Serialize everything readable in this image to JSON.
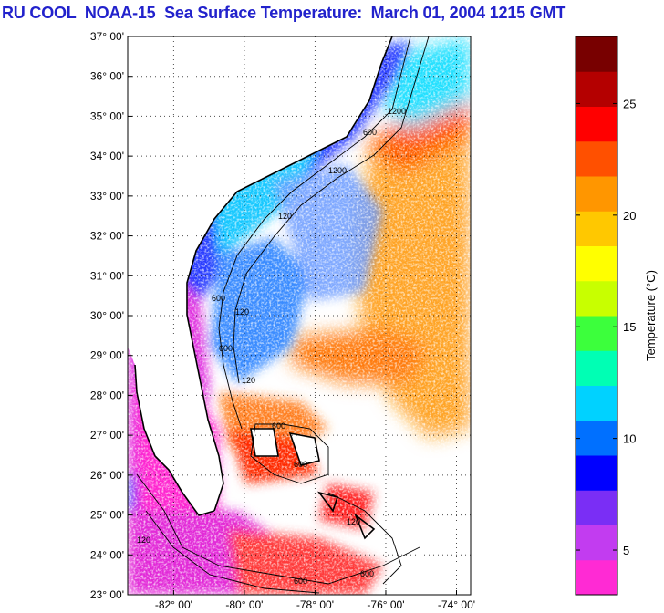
{
  "title": "RU COOL  NOAA-15  Sea Surface Temperature:  March 01, 2004 1215 GMT",
  "map": {
    "lat_range": [
      23,
      37
    ],
    "lon_range": [
      -83.3,
      -73.6
    ],
    "lat_labels": [
      {
        "value": 37,
        "label": "37° 00'"
      },
      {
        "value": 36,
        "label": "36° 00'"
      },
      {
        "value": 35,
        "label": "35° 00'"
      },
      {
        "value": 34,
        "label": "34° 00'"
      },
      {
        "value": 33,
        "label": "33° 00'"
      },
      {
        "value": 32,
        "label": "32° 00'"
      },
      {
        "value": 31,
        "label": "31° 00'"
      },
      {
        "value": 30,
        "label": "30° 00'"
      },
      {
        "value": 29,
        "label": "29° 00'"
      },
      {
        "value": 28,
        "label": "28° 00'"
      },
      {
        "value": 27,
        "label": "27° 00'"
      },
      {
        "value": 26,
        "label": "26° 00'"
      },
      {
        "value": 25,
        "label": "25° 00'"
      },
      {
        "value": 24,
        "label": "24° 00'"
      },
      {
        "value": 23,
        "label": "23° 00'"
      }
    ],
    "lon_labels": [
      {
        "value": -82,
        "label": "-82° 00'"
      },
      {
        "value": -80,
        "label": "-80° 00'"
      },
      {
        "value": -78,
        "label": "-78° 00'"
      },
      {
        "value": -76,
        "label": "-76° 00'"
      },
      {
        "value": -74,
        "label": "-74° 00'"
      }
    ],
    "contour_labels": [
      "600",
      "120",
      "600",
      "120",
      "600",
      "120",
      "600",
      "600",
      "120",
      "600",
      "1200",
      "1200",
      "600",
      "120"
    ]
  },
  "colorbar": {
    "label": "Temperature (°C)",
    "range": [
      3,
      28
    ],
    "ticks": [
      {
        "value": 5,
        "label": "5"
      },
      {
        "value": 10,
        "label": "10"
      },
      {
        "value": 15,
        "label": "15"
      },
      {
        "value": 20,
        "label": "20"
      },
      {
        "value": 25,
        "label": "25"
      }
    ],
    "colors": [
      "#ff2ad4",
      "#c23cf0",
      "#7a2ef5",
      "#0000ff",
      "#0070ff",
      "#00d2ff",
      "#00ffb4",
      "#3cff3c",
      "#c8ff00",
      "#ffff00",
      "#ffc800",
      "#ff9600",
      "#ff5000",
      "#ff0000",
      "#b40000",
      "#780000"
    ]
  }
}
